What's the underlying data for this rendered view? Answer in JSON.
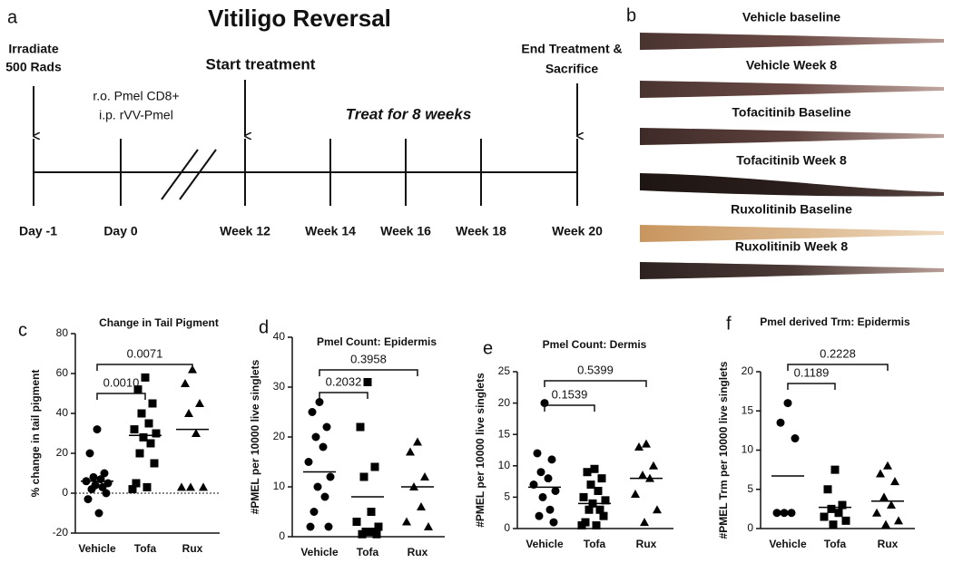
{
  "timeline": {
    "panel": "a",
    "title": "Vitiligo Reversal",
    "irradiate": [
      "Irradiate",
      "500 Rads"
    ],
    "injection": [
      "r.o. Pmel CD8+",
      "i.p. rVV-Pmel"
    ],
    "start": "Start treatment",
    "treat": "Treat for 8 weeks",
    "end": [
      "End Treatment &",
      "Sacrifice"
    ],
    "time_points": [
      "Day -1",
      "Day 0",
      "Week 12",
      "Week 14",
      "Week 16",
      "Week 18",
      "Week 20"
    ]
  },
  "tail_images": {
    "panel": "b",
    "labels": [
      "Vehicle baseline",
      "Vehicle Week 8",
      "Tofacitinib Baseline",
      "Tofacitinib Week 8",
      "Ruxolitinib Baseline",
      "Ruxolitinib Week 8"
    ]
  },
  "chart_data": [
    {
      "type": "dot",
      "panel": "c",
      "title": "Change in Tail Pigment",
      "y_label": "% change in tail pigment",
      "categories": [
        "Vehicle",
        "Tofa",
        "Rux"
      ],
      "markers": [
        "circle",
        "square",
        "triangle"
      ],
      "color": "#000000",
      "values": [
        [
          32,
          20,
          10,
          8,
          7,
          6,
          5,
          4,
          3,
          2,
          0,
          -3,
          -10
        ],
        [
          58,
          52,
          45,
          40,
          35,
          32,
          30,
          28,
          25,
          20,
          15,
          5,
          3,
          2
        ],
        [
          62,
          55,
          45,
          40,
          30,
          3,
          3,
          3
        ]
      ],
      "means": [
        6,
        29,
        32
      ],
      "ylim": [
        -20,
        80
      ],
      "yticks": [
        -20,
        0,
        20,
        40,
        60,
        80
      ],
      "zero_line": true,
      "comparisons": [
        {
          "pair": [
            "Vehicle",
            "Tofa"
          ],
          "p": "0.0010"
        },
        {
          "pair": [
            "Vehicle",
            "Rux"
          ],
          "p": "0.0071"
        }
      ]
    },
    {
      "type": "dot",
      "panel": "d",
      "title": "Pmel Count: Epidermis",
      "y_label": "#PMEL per 10000 live singlets",
      "categories": [
        "Vehicle",
        "Tofa",
        "Rux"
      ],
      "markers": [
        "circle",
        "square",
        "triangle"
      ],
      "color": "#000000",
      "values": [
        [
          27,
          25,
          22,
          20,
          18,
          15,
          12,
          10,
          8,
          5,
          2,
          2
        ],
        [
          31,
          22,
          14,
          12,
          5,
          3,
          2,
          1,
          1,
          0.5,
          0.5
        ],
        [
          19,
          17,
          12,
          10,
          6,
          3,
          2
        ]
      ],
      "means": [
        13,
        8,
        10
      ],
      "ylim": [
        0,
        40
      ],
      "yticks": [
        0,
        10,
        20,
        30,
        40
      ],
      "comparisons": [
        {
          "pair": [
            "Vehicle",
            "Tofa"
          ],
          "p": "0.2032"
        },
        {
          "pair": [
            "Vehicle",
            "Rux"
          ],
          "p": "0.3958"
        }
      ]
    },
    {
      "type": "dot",
      "panel": "e",
      "title": "Pmel Count: Dermis",
      "y_label": "#PMEL per 10000 live singlets",
      "categories": [
        "Vehicle",
        "Tofa",
        "Rux"
      ],
      "markers": [
        "circle",
        "square",
        "triangle"
      ],
      "color": "#000000",
      "values": [
        [
          20,
          12,
          11,
          9,
          8,
          7,
          6,
          5,
          3,
          2,
          1
        ],
        [
          9.5,
          9,
          8,
          7,
          6,
          5,
          4.5,
          4,
          3,
          3,
          2,
          1,
          0.5,
          0.5
        ],
        [
          13.5,
          13,
          10,
          8.5,
          8,
          5.5,
          3,
          1
        ]
      ],
      "means": [
        6.6,
        4,
        8
      ],
      "ylim": [
        0,
        25
      ],
      "yticks": [
        0,
        5,
        10,
        15,
        20,
        25
      ],
      "comparisons": [
        {
          "pair": [
            "Vehicle",
            "Tofa"
          ],
          "p": "0.1539"
        },
        {
          "pair": [
            "Vehicle",
            "Rux"
          ],
          "p": "0.5399"
        }
      ]
    },
    {
      "type": "dot",
      "panel": "f",
      "title": "Pmel derived Trm: Epidermis",
      "y_label": "#PMEL Trm per 10000 live singlets",
      "categories": [
        "Vehicle",
        "Tofa",
        "Rux"
      ],
      "markers": [
        "circle",
        "square",
        "triangle"
      ],
      "color": "#000000",
      "values": [
        [
          16,
          13.5,
          11.5,
          2,
          2,
          2
        ],
        [
          7.5,
          5,
          3,
          2.5,
          2,
          1.5,
          1,
          0.5
        ],
        [
          8,
          7,
          6,
          4,
          3,
          2,
          1,
          0.5
        ]
      ],
      "means": [
        6.7,
        2.7,
        3.5
      ],
      "ylim": [
        0,
        20
      ],
      "yticks": [
        0,
        5,
        10,
        15,
        20
      ],
      "comparisons": [
        {
          "pair": [
            "Vehicle",
            "Tofa"
          ],
          "p": "0.1189"
        },
        {
          "pair": [
            "Vehicle",
            "Rux"
          ],
          "p": "0.2228"
        }
      ]
    }
  ]
}
